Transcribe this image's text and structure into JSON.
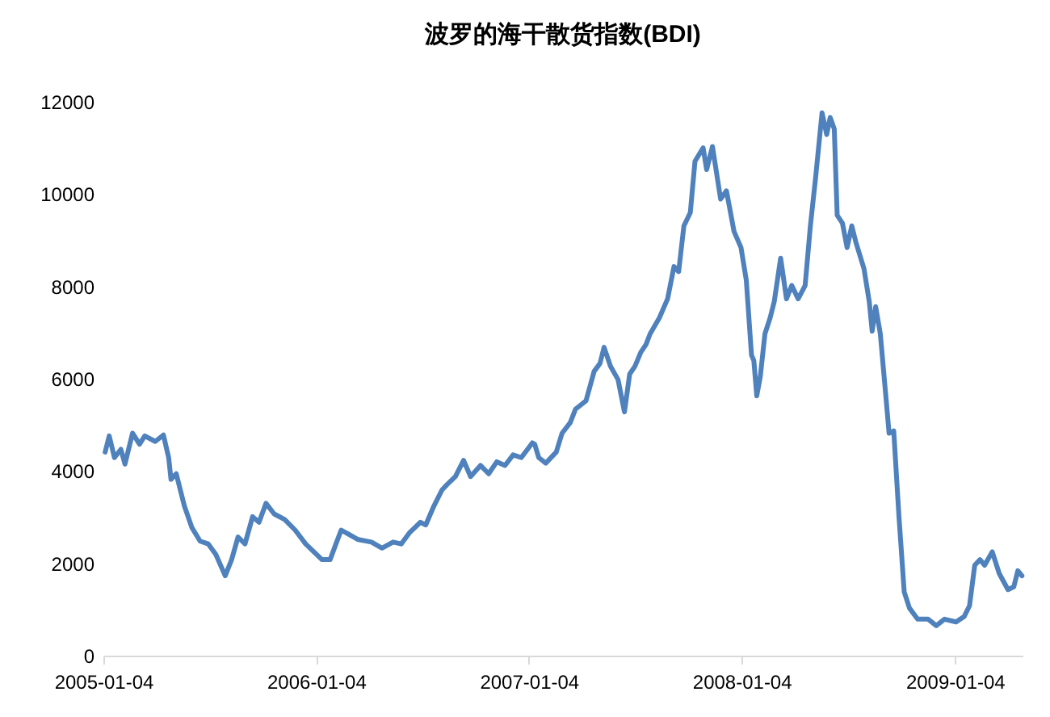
{
  "chart_data": {
    "type": "line",
    "title": "波罗的海干散货指数(BDI)",
    "x": [
      "2005-01-07",
      "2005-01-14",
      "2005-01-23",
      "2005-02-03",
      "2005-02-10",
      "2005-02-23",
      "2005-03-07",
      "2005-03-16",
      "2005-04-03",
      "2005-04-17",
      "2005-04-26",
      "2005-04-30",
      "2005-05-09",
      "2005-05-23",
      "2005-06-05",
      "2005-06-19",
      "2005-07-03",
      "2005-07-16",
      "2005-08-01",
      "2005-08-12",
      "2005-08-23",
      "2005-09-04",
      "2005-09-17",
      "2005-09-28",
      "2005-10-10",
      "2005-10-24",
      "2005-11-11",
      "2005-11-29",
      "2005-12-17",
      "2006-01-14",
      "2006-01-28",
      "2006-02-07",
      "2006-02-16",
      "2006-03-02",
      "2006-03-16",
      "2006-04-09",
      "2006-04-27",
      "2006-05-16",
      "2006-05-30",
      "2006-06-13",
      "2006-07-02",
      "2006-07-11",
      "2006-07-25",
      "2006-08-08",
      "2006-08-17",
      "2006-08-31",
      "2006-09-14",
      "2006-09-26",
      "2006-10-13",
      "2006-10-27",
      "2006-11-10",
      "2006-11-24",
      "2006-12-08",
      "2006-12-22",
      "2007-01-10",
      "2007-01-14",
      "2007-01-21",
      "2007-02-02",
      "2007-02-20",
      "2007-03-02",
      "2007-03-16",
      "2007-03-25",
      "2007-04-12",
      "2007-04-26",
      "2007-05-06",
      "2007-05-13",
      "2007-05-24",
      "2007-06-06",
      "2007-06-17",
      "2007-06-26",
      "2007-07-05",
      "2007-07-15",
      "2007-07-24",
      "2007-07-31",
      "2007-08-16",
      "2007-08-30",
      "2007-09-10",
      "2007-09-18",
      "2007-09-27",
      "2007-10-08",
      "2007-10-16",
      "2007-10-30",
      "2007-11-05",
      "2007-11-15",
      "2007-11-29",
      "2007-12-09",
      "2007-12-22",
      "2008-01-03",
      "2008-01-12",
      "2008-01-21",
      "2008-01-25",
      "2008-01-30",
      "2008-02-05",
      "2008-02-13",
      "2008-02-22",
      "2008-02-29",
      "2008-03-11",
      "2008-03-21",
      "2008-03-30",
      "2008-04-10",
      "2008-04-22",
      "2008-05-01",
      "2008-05-10",
      "2008-05-21",
      "2008-05-29",
      "2008-06-04",
      "2008-06-11",
      "2008-06-16",
      "2008-06-25",
      "2008-07-03",
      "2008-07-11",
      "2008-07-18",
      "2008-08-01",
      "2008-08-10",
      "2008-08-15",
      "2008-08-21",
      "2008-08-29",
      "2008-09-07",
      "2008-09-13",
      "2008-09-21",
      "2008-09-30",
      "2008-10-09",
      "2008-10-18",
      "2008-11-01",
      "2008-11-19",
      "2008-12-03",
      "2008-12-17",
      "2009-01-06",
      "2009-01-20",
      "2009-01-29",
      "2009-02-07",
      "2009-02-16",
      "2009-02-24",
      "2009-03-09",
      "2009-03-21",
      "2009-04-05",
      "2009-04-15",
      "2009-04-22",
      "2009-04-29"
    ],
    "series": [
      {
        "color": "#4f81bd",
        "values": [
          4410,
          4760,
          4290,
          4470,
          4150,
          4820,
          4580,
          4760,
          4640,
          4780,
          4290,
          3820,
          3940,
          3240,
          2770,
          2480,
          2420,
          2190,
          1730,
          2080,
          2570,
          2420,
          3010,
          2890,
          3300,
          3070,
          2950,
          2720,
          2420,
          2080,
          2080,
          2420,
          2720,
          2620,
          2520,
          2460,
          2330,
          2460,
          2420,
          2660,
          2890,
          2830,
          3240,
          3590,
          3710,
          3880,
          4230,
          3880,
          4120,
          3940,
          4200,
          4120,
          4350,
          4290,
          4610,
          4580,
          4290,
          4170,
          4410,
          4820,
          5050,
          5340,
          5520,
          6160,
          6330,
          6680,
          6270,
          5980,
          5280,
          6100,
          6270,
          6570,
          6740,
          6970,
          7320,
          7730,
          8430,
          8320,
          9310,
          9600,
          10710,
          11000,
          10530,
          11030,
          9890,
          10070,
          9190,
          8840,
          8140,
          6510,
          6390,
          5630,
          6040,
          6970,
          7320,
          7670,
          8610,
          7730,
          8020,
          7730,
          8020,
          9310,
          10360,
          11760,
          11290,
          11660,
          11410,
          9540,
          9370,
          8840,
          9310,
          8960,
          8380,
          7670,
          7030,
          7560,
          6970,
          5690,
          4820,
          4870,
          3010,
          1380,
          1030,
          790,
          790,
          650,
          790,
          730,
          850,
          1080,
          1960,
          2080,
          1960,
          2250,
          1780,
          1430,
          1490,
          1840,
          1730
        ]
      }
    ],
    "xlim": [
      "2005-01-04",
      "2009-04-30"
    ],
    "xticks": [
      "2005-01-04",
      "2006-01-04",
      "2007-01-04",
      "2008-01-04",
      "2009-01-04"
    ],
    "ylim": [
      0,
      12000
    ],
    "yticks": [
      0,
      2000,
      4000,
      6000,
      8000,
      10000,
      12000
    ],
    "grid": false,
    "legend": false,
    "line_style": "solid"
  }
}
